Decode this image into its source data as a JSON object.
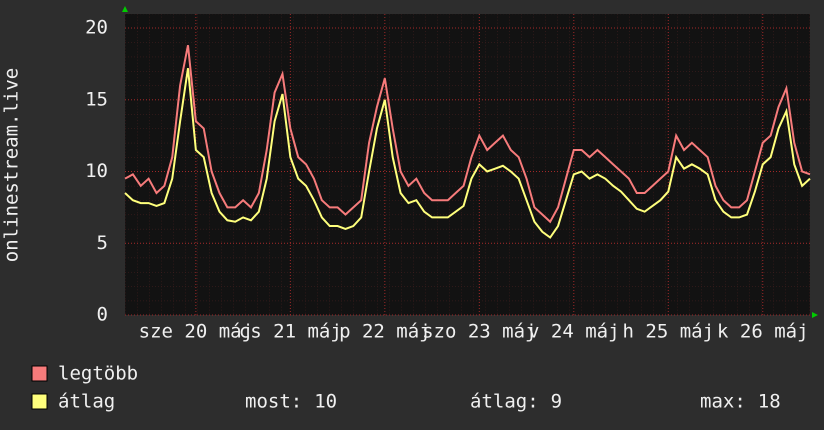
{
  "chart_data": {
    "type": "line",
    "ylabel": "onlinestream.live",
    "x": [
      -6,
      -4,
      -2,
      0,
      2,
      4,
      6,
      8,
      10,
      12,
      14,
      16,
      18,
      20,
      22,
      24,
      26,
      28,
      30,
      32,
      34,
      36,
      38,
      40,
      42,
      44,
      46,
      48,
      50,
      52,
      54,
      56,
      58,
      60,
      62,
      64,
      66,
      68,
      70,
      72,
      74,
      76,
      78,
      80,
      82,
      84,
      86,
      88,
      90,
      92,
      94,
      96,
      98,
      100,
      102,
      104,
      106,
      108,
      110,
      112,
      114,
      116,
      118,
      120,
      122,
      124,
      126,
      128,
      130,
      132,
      134,
      136,
      138,
      140,
      142,
      144,
      146,
      148,
      150,
      152,
      154,
      156,
      158,
      160,
      162,
      164,
      166,
      168
    ],
    "series": [
      {
        "name": "legtöbb",
        "color": "#f77b7b",
        "values": [
          9.5,
          9.8,
          9,
          9.5,
          8.5,
          9,
          11,
          16,
          18.8,
          13.5,
          13,
          10,
          8.5,
          7.5,
          7.5,
          8,
          7.5,
          8.5,
          11.5,
          15.5,
          16.8,
          13,
          11,
          10.5,
          9.5,
          8,
          7.5,
          7.5,
          7,
          7.5,
          8,
          12,
          14.5,
          16.5,
          13,
          10,
          9,
          9.5,
          8.5,
          8,
          8,
          8,
          8.5,
          9,
          11,
          12.5,
          11.5,
          12,
          12.5,
          11.5,
          11,
          9.5,
          7.5,
          7,
          6.5,
          7.5,
          9.5,
          11.5,
          11.5,
          11,
          11.5,
          11,
          10.5,
          10,
          9.5,
          8.5,
          8.5,
          9,
          9.5,
          10,
          12.5,
          11.5,
          12,
          11.5,
          11,
          9,
          8,
          7.5,
          7.5,
          8,
          10,
          12,
          12.5,
          14.5,
          15.8,
          12,
          10,
          9.8
        ]
      },
      {
        "name": "átlag",
        "color": "#ffff7c",
        "values": [
          8.5,
          8,
          7.8,
          7.8,
          7.6,
          7.8,
          9.5,
          13.5,
          17.2,
          11.5,
          11,
          8.5,
          7.2,
          6.6,
          6.5,
          6.8,
          6.6,
          7.2,
          9.5,
          13.5,
          15.4,
          11,
          9.5,
          9,
          8,
          6.8,
          6.2,
          6.2,
          6,
          6.2,
          6.8,
          10,
          13,
          15,
          11,
          8.5,
          7.8,
          8,
          7.2,
          6.8,
          6.8,
          6.8,
          7.2,
          7.6,
          9.5,
          10.5,
          10,
          10.2,
          10.4,
          10,
          9.5,
          8,
          6.5,
          5.8,
          5.4,
          6.2,
          8,
          9.8,
          10,
          9.5,
          9.8,
          9.5,
          9,
          8.6,
          8,
          7.4,
          7.2,
          7.6,
          8,
          8.6,
          11,
          10.2,
          10.5,
          10.2,
          9.8,
          8,
          7.2,
          6.8,
          6.8,
          7,
          8.6,
          10.5,
          11,
          13,
          14.2,
          10.5,
          9,
          9.5
        ]
      }
    ],
    "xlim": [
      -6,
      168
    ],
    "xticks": [
      {
        "value": 12,
        "label": "sze 20 máj"
      },
      {
        "value": 36,
        "label": "cs 21 máj"
      },
      {
        "value": 60,
        "label": "p 22 máj"
      },
      {
        "value": 84,
        "label": "szo 23 máj"
      },
      {
        "value": 108,
        "label": "v 24 máj"
      },
      {
        "value": 132,
        "label": "h 25 máj"
      },
      {
        "value": 156,
        "label": "k 26 máj"
      }
    ],
    "ylim": [
      0,
      20
    ],
    "yticks": [
      0,
      5,
      10,
      15,
      20
    ],
    "grid": true,
    "stats": [
      {
        "label": "most:",
        "value": 10
      },
      {
        "label": "átlag:",
        "value": 9
      },
      {
        "label": "max:",
        "value": 18
      }
    ]
  }
}
